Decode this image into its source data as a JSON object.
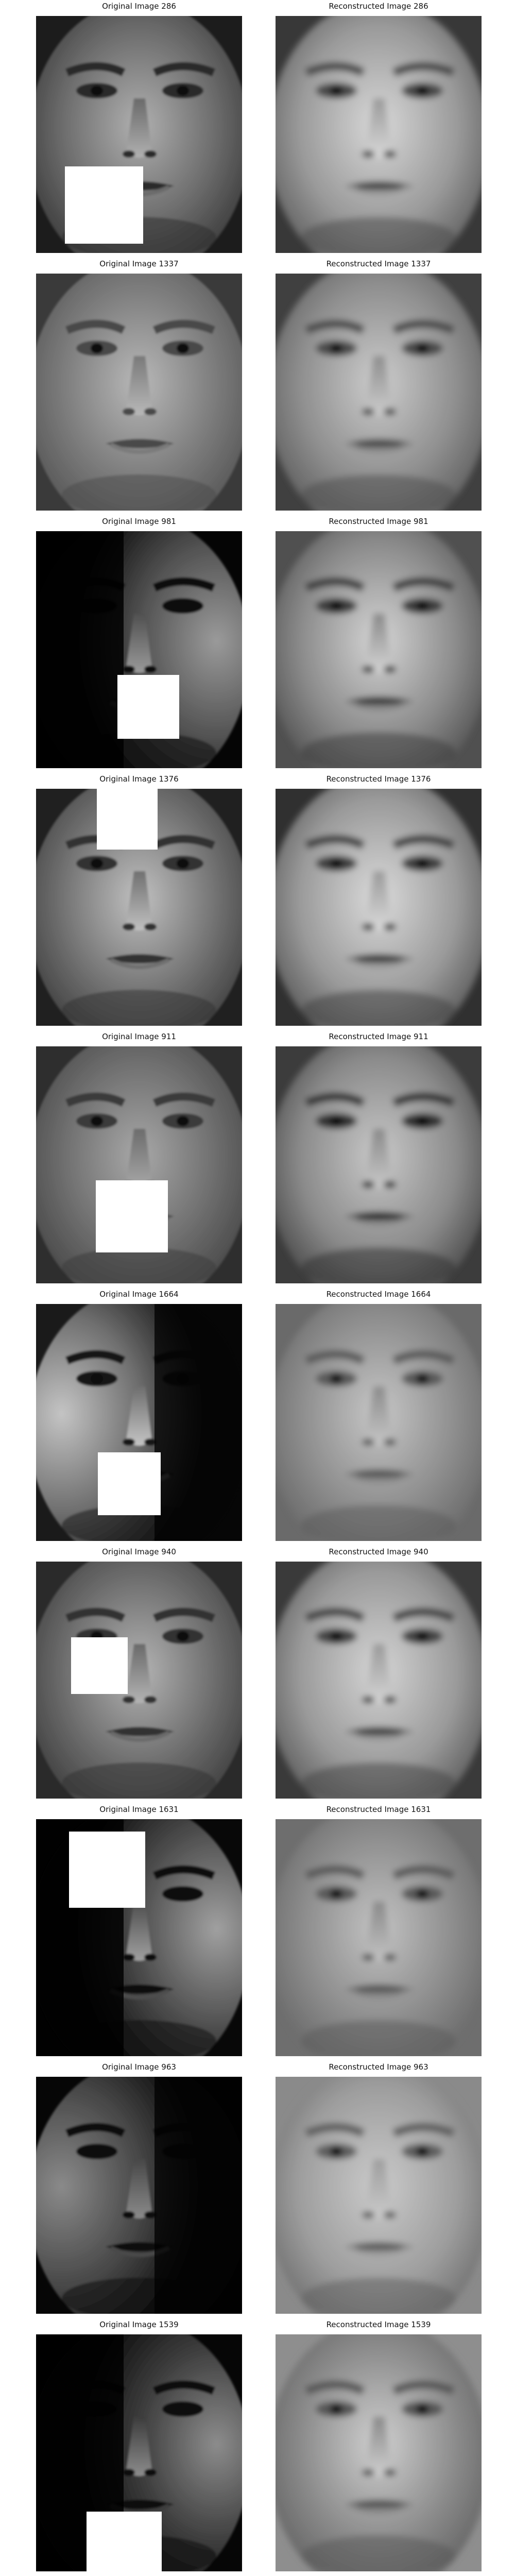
{
  "rows": [
    {
      "original_title": "Original Image 286",
      "reconstructed_title": "Reconstructed Image 286"
    },
    {
      "original_title": "Original Image 1337",
      "reconstructed_title": "Reconstructed Image 1337"
    },
    {
      "original_title": "Original Image 981",
      "reconstructed_title": "Reconstructed Image 981"
    },
    {
      "original_title": "Original Image 1376",
      "reconstructed_title": "Reconstructed Image 1376"
    },
    {
      "original_title": "Original Image 911",
      "reconstructed_title": "Reconstructed Image 911"
    },
    {
      "original_title": "Original Image 1664",
      "reconstructed_title": "Reconstructed Image 1664"
    },
    {
      "original_title": "Original Image 940",
      "reconstructed_title": "Reconstructed Image 940"
    },
    {
      "original_title": "Original Image 1631",
      "reconstructed_title": "Reconstructed Image 1631"
    },
    {
      "original_title": "Original Image 963",
      "reconstructed_title": "Reconstructed Image 963"
    },
    {
      "original_title": "Original Image 1539",
      "reconstructed_title": "Reconstructed Image 1539"
    }
  ]
}
